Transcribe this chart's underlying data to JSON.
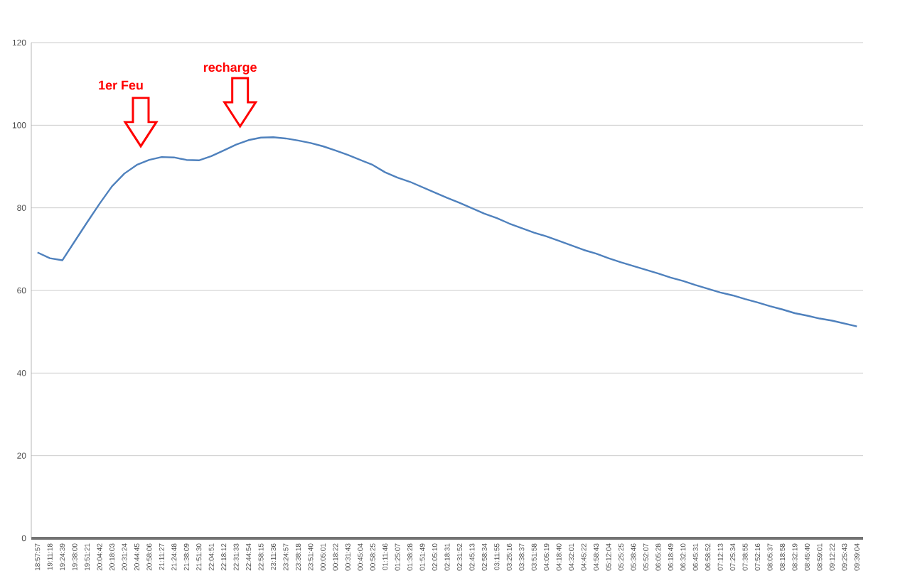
{
  "chart_data": {
    "type": "line",
    "categories": [
      "18:57:57",
      "19:11:18",
      "19:24:39",
      "19:38:00",
      "19:51:21",
      "20:04:42",
      "20:18:03",
      "20:31:24",
      "20:44:45",
      "20:58:06",
      "21:11:27",
      "21:24:48",
      "21:38:09",
      "21:51:30",
      "22:04:51",
      "22:18:12",
      "22:31:33",
      "22:44:54",
      "22:58:15",
      "23:11:36",
      "23:24:57",
      "23:38:18",
      "23:51:40",
      "00:05:01",
      "00:18:22",
      "00:31:43",
      "00:45:04",
      "00:58:25",
      "01:11:46",
      "01:25:07",
      "01:38:28",
      "01:51:49",
      "02:05:10",
      "02:18:31",
      "02:31:52",
      "02:45:13",
      "02:58:34",
      "03:11:55",
      "03:25:16",
      "03:38:37",
      "03:51:58",
      "04:05:19",
      "04:18:40",
      "04:32:01",
      "04:45:22",
      "04:58:43",
      "05:12:04",
      "05:25:25",
      "05:38:46",
      "05:52:07",
      "06:05:28",
      "06:18:49",
      "06:32:10",
      "06:45:31",
      "06:58:52",
      "07:12:13",
      "07:25:34",
      "07:38:55",
      "07:52:16",
      "08:05:37",
      "08:18:58",
      "08:32:19",
      "08:45:40",
      "08:59:01",
      "09:12:22",
      "09:25:43",
      "09:39:04"
    ],
    "series": [
      {
        "color": "#4f81bd",
        "values": [
          69.2,
          67.8,
          67.3,
          71.9,
          76.5,
          81,
          85.2,
          88.3,
          90.4,
          91.6,
          92.3,
          92.2,
          91.6,
          91.5,
          92.5,
          93.9,
          95.3,
          96.4,
          97.0,
          97.1,
          96.8,
          96.3,
          95.7,
          94.9,
          93.9,
          92.8,
          91.6,
          90.4,
          88.6,
          87.3,
          86.3,
          85.0,
          83.7,
          82.4,
          81.2,
          79.9,
          78.6,
          77.5,
          76.2,
          75.1,
          74.0,
          73.1,
          72.0,
          70.9,
          69.8,
          68.9,
          67.8,
          66.8,
          65.9,
          65.0,
          64.1,
          63.1,
          62.3,
          61.3,
          60.4,
          59.5,
          58.8,
          57.9,
          57.1,
          56.2,
          55.4,
          54.5,
          53.9,
          53.2,
          52.7,
          52.0,
          51.3
        ]
      }
    ],
    "ylim": [
      0,
      120
    ],
    "yticks": [
      0,
      20,
      40,
      60,
      80,
      100,
      120
    ],
    "grid": "y",
    "annotations": [
      "1er Feu",
      "recharge"
    ]
  }
}
